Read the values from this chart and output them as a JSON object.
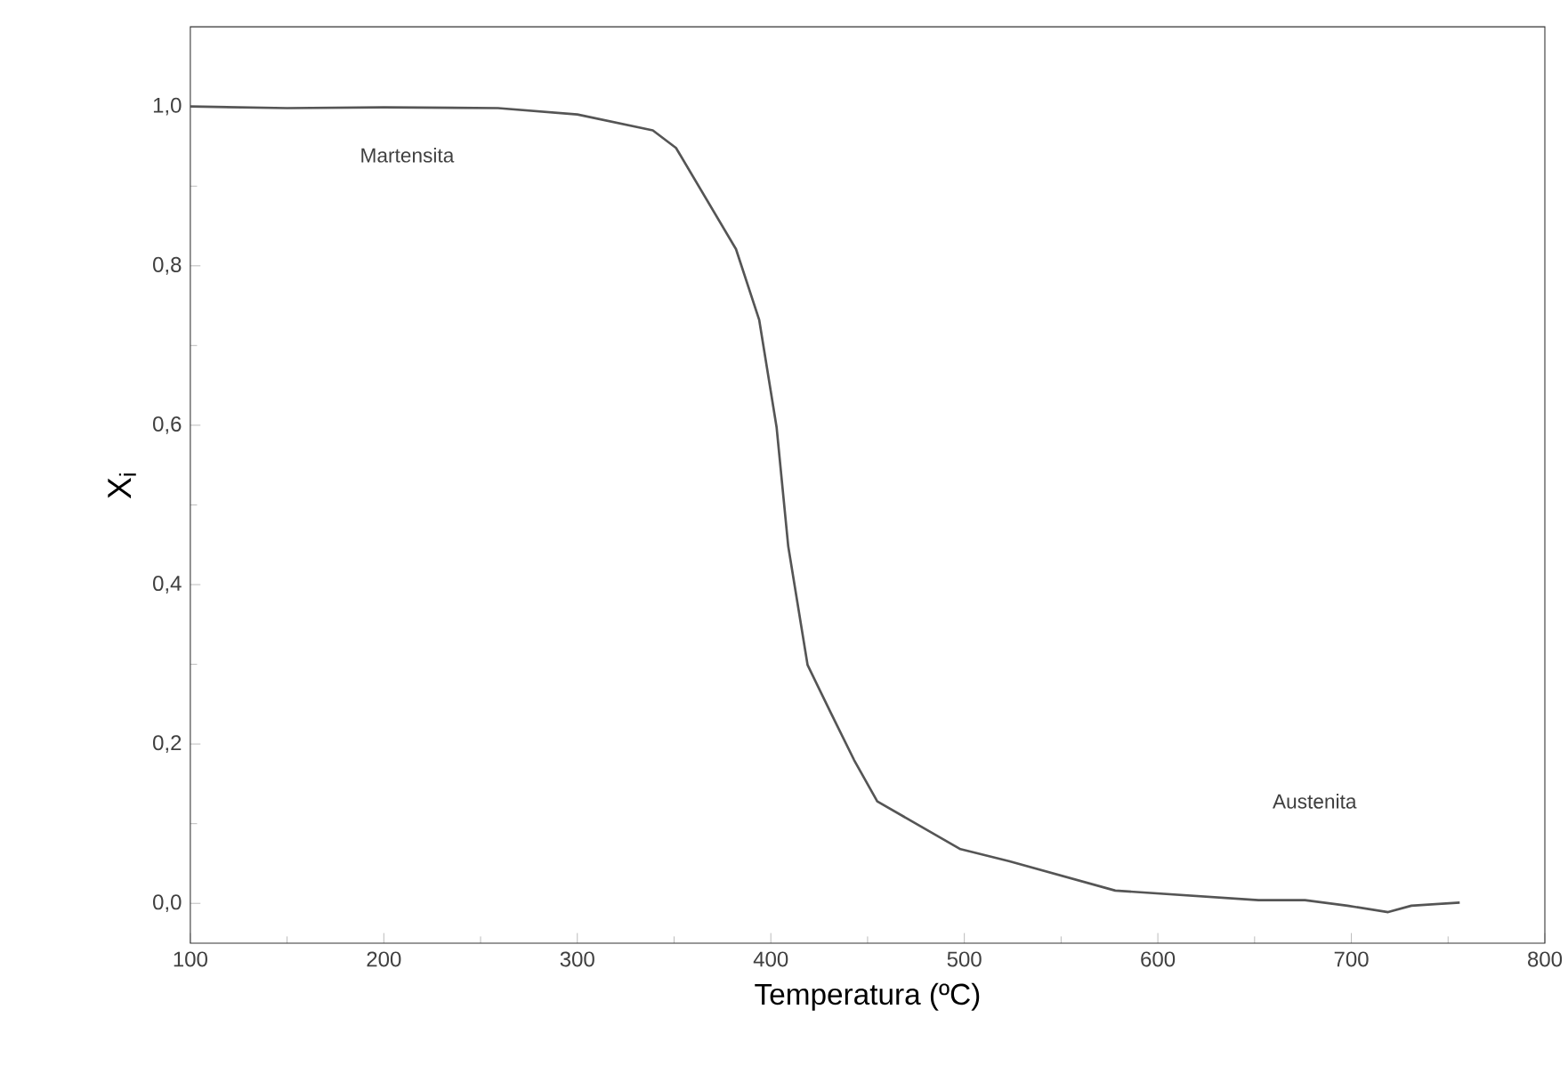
{
  "chart_data": {
    "type": "line",
    "xlabel": "Temperatura (ºC)",
    "ylabel": "X$_{i}$",
    "x": [
      100,
      150,
      200,
      259,
      300,
      339,
      351,
      382,
      394,
      403,
      409,
      419,
      431,
      443,
      455,
      498,
      523,
      578,
      652,
      676,
      698,
      719,
      731,
      756
    ],
    "series": [
      {
        "color": "#555555",
        "values": [
          1.0,
          0.998,
          0.999,
          0.998,
          0.99,
          0.97,
          0.948,
          0.821,
          0.732,
          0.597,
          0.448,
          0.299,
          0.239,
          0.18,
          0.128,
          0.068,
          0.053,
          0.016,
          0.004,
          0.004,
          -0.003,
          -0.011,
          -0.003,
          0.001
        ]
      }
    ],
    "xlim": [
      100,
      800
    ],
    "ylim": [
      -0.05,
      1.1
    ],
    "xticks": [
      100,
      200,
      300,
      400,
      500,
      600,
      700,
      800
    ],
    "yticks": [
      {
        "value": 0,
        "label": "0,0"
      },
      {
        "value": 0.2,
        "label": "0,2"
      },
      {
        "value": 0.4,
        "label": "0,4"
      },
      {
        "value": 0.6,
        "label": "0,6"
      },
      {
        "value": 0.8,
        "label": "0,8"
      },
      {
        "value": 1.0,
        "label": "1,0"
      }
    ],
    "annotations": [
      "Martensita",
      "Austenita"
    ],
    "grid": false,
    "marker": "none",
    "line_style": "solid"
  }
}
